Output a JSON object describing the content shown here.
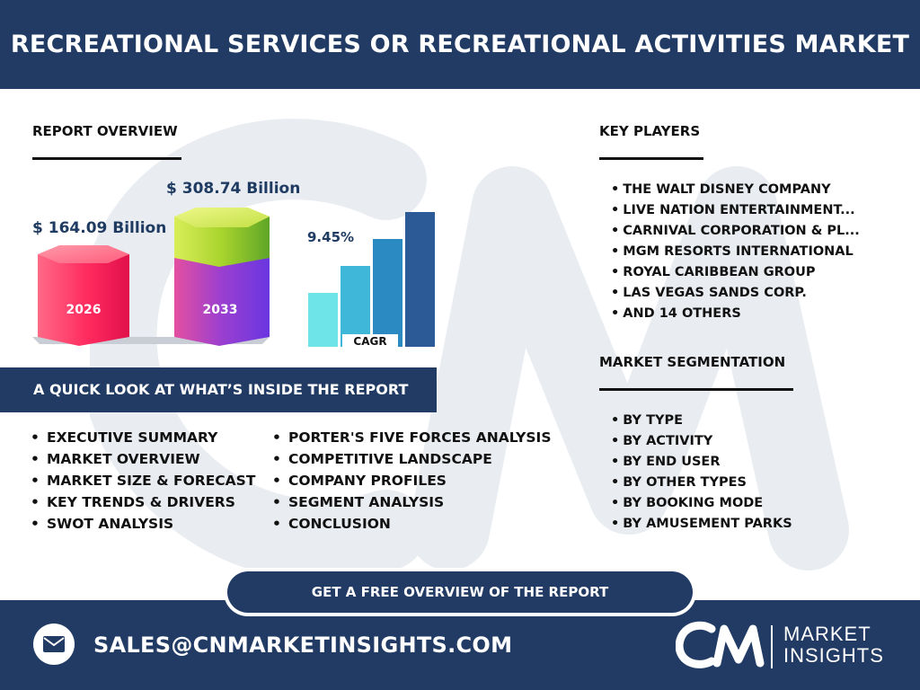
{
  "header": {
    "title": "RECREATIONAL SERVICES OR RECREATIONAL ACTIVITIES MARKET"
  },
  "report_overview": {
    "title": "REPORT OVERVIEW",
    "value_2026": "$ 164.09 Billion",
    "value_2033": "$ 308.74 Billion",
    "year_2026": "2026",
    "year_2033": "2033",
    "cagr_value": "9.45%",
    "cagr_label": "CAGR"
  },
  "key_players": {
    "title": "KEY PLAYERS",
    "items": [
      "THE WALT DISNEY COMPANY",
      "LIVE NATION ENTERTAINMENT...",
      "CARNIVAL CORPORATION & PL...",
      "MGM RESORTS INTERNATIONAL",
      "ROYAL CARIBBEAN GROUP",
      "LAS VEGAS SANDS CORP.",
      "AND 14 OTHERS"
    ]
  },
  "market_segmentation": {
    "title": "MARKET SEGMENTATION",
    "items": [
      "BY TYPE",
      "BY ACTIVITY",
      "BY END USER",
      "BY OTHER TYPES",
      "BY BOOKING MODE",
      "BY AMUSEMENT PARKS"
    ]
  },
  "quick_look": {
    "title": "A QUICK LOOK AT WHAT’S INSIDE THE REPORT",
    "left_items": [
      "EXECUTIVE SUMMARY",
      "MARKET OVERVIEW",
      "MARKET SIZE & FORECAST",
      "KEY TRENDS & DRIVERS",
      "SWOT ANALYSIS"
    ],
    "right_items": [
      "PORTER'S FIVE FORCES ANALYSIS",
      "COMPETITIVE LANDSCAPE",
      "COMPANY PROFILES",
      "SEGMENT ANALYSIS",
      "CONCLUSION"
    ]
  },
  "cta": {
    "label": "GET A FREE OVERVIEW OF THE REPORT"
  },
  "footer": {
    "email": "SALES@CNMARKETINSIGHTS.COM",
    "logo_line1": "MARKET",
    "logo_line2": "INSIGHTS"
  },
  "colors": {
    "navy": "#213b64",
    "hex_2026": "#ff2d63",
    "hex_2033_top": "#a6d52c",
    "hex_2033_bottom": "#7b3fd9",
    "bar_1": "#6ee3e8",
    "bar_2": "#3fb7d9",
    "bar_3": "#2a8ac1",
    "bar_4": "#2b5a96"
  },
  "icons": [
    "mail-icon",
    "cn-logo-icon"
  ]
}
